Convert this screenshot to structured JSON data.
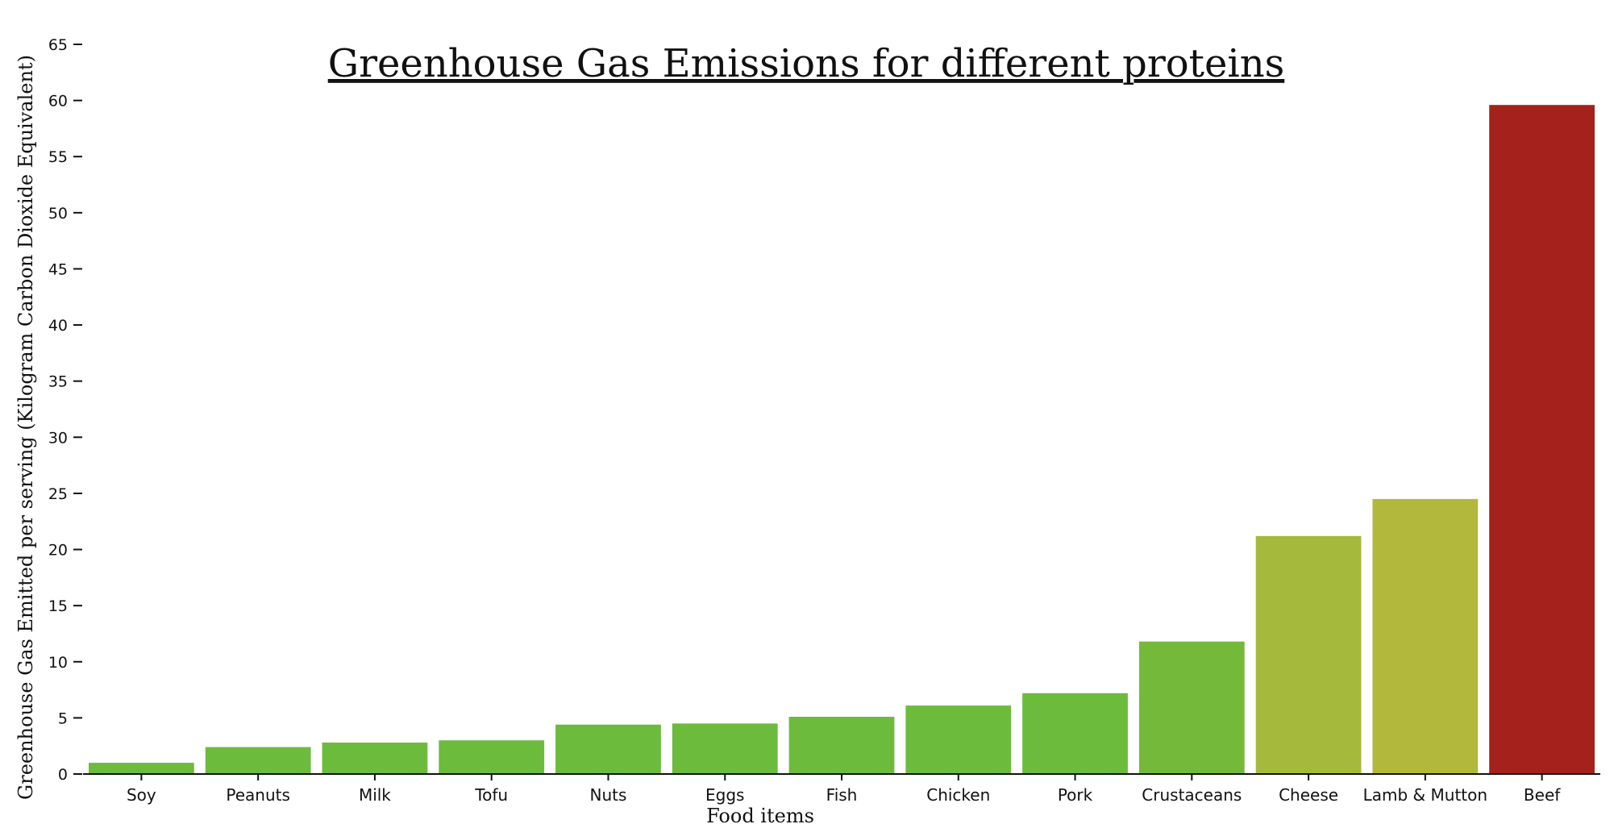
{
  "chart_data": {
    "type": "bar",
    "title": "Greenhouse Gas Emissions for different proteins",
    "xlabel": "Food items",
    "ylabel": "Greenhouse Gas Emitted per serving (Kilogram Carbon Dioxide Equivalent)",
    "ylim": [
      0,
      65
    ],
    "yticks": [
      0,
      5,
      10,
      15,
      20,
      25,
      30,
      35,
      40,
      45,
      50,
      55,
      60,
      65
    ],
    "grid": false,
    "categories": [
      "Soy",
      "Peanuts",
      "Milk",
      "Tofu",
      "Nuts",
      "Eggs",
      "Fish",
      "Chicken",
      "Pork",
      "Crustaceans",
      "Cheese",
      "Lamb & Mutton",
      "Beef"
    ],
    "values": [
      1.0,
      2.4,
      2.8,
      3.0,
      4.4,
      4.5,
      5.1,
      6.1,
      7.2,
      11.8,
      21.2,
      24.5,
      59.6
    ],
    "colors": [
      "#6cbb3c",
      "#6cbb3c",
      "#6cbb3c",
      "#6cbb3c",
      "#6cbb3c",
      "#6cbb3c",
      "#6cbb3c",
      "#6cbb3c",
      "#6cbb3c",
      "#74b93a",
      "#a5b93d",
      "#b2b83c",
      "#a4221b"
    ]
  }
}
